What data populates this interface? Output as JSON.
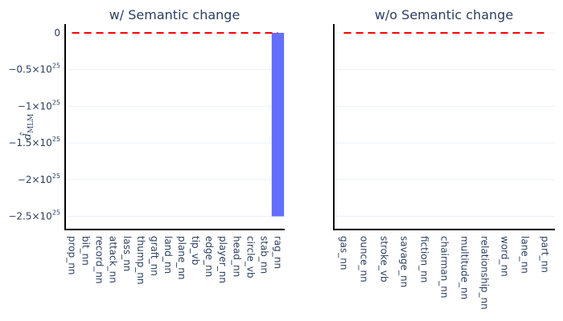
{
  "chart_data": [
    {
      "type": "bar",
      "title": "w/ Semantic change",
      "ylabel": "d̂",
      "ylabel_sub": "MLM",
      "categories": [
        "prop_nn",
        "bit_nn",
        "record_nn",
        "attack_nn",
        "lass_nn",
        "thump_nn",
        "graft_nn",
        "land_nn",
        "plane_nn",
        "tip_vb",
        "edge_nn",
        "player_nn",
        "head_nn",
        "circle_vb",
        "stab_nn",
        "rag_nn"
      ],
      "values": [
        0,
        0,
        0,
        0,
        0,
        0,
        0,
        0,
        0,
        0,
        0,
        0,
        0,
        0,
        0,
        -2.5e+25
      ],
      "ylim": [
        -2.68e+25,
        1.2e+24
      ],
      "yticks": [
        0,
        -5e+24,
        -1e+25,
        -1.5e+25,
        -2e+25,
        -2.5e+25
      ],
      "ytick_labels": [
        {
          "base": "0",
          "exp": ""
        },
        {
          "base": "−0.5×10",
          "exp": "25"
        },
        {
          "base": "−1×10",
          "exp": "25"
        },
        {
          "base": "−1.5×10",
          "exp": "25"
        },
        {
          "base": "−2×10",
          "exp": "25"
        },
        {
          "base": "−2.5×10",
          "exp": "25"
        }
      ],
      "reference_line": 0,
      "bar_color": "#636efa",
      "line_color": "#ff0000",
      "grid": true
    },
    {
      "type": "bar",
      "title": "w/o Semantic change",
      "categories": [
        "gas_nn",
        "ounce_nn",
        "stroke_vb",
        "savage_nn",
        "fiction_nn",
        "chairman_nn",
        "multitude_nn",
        "relationship_nn",
        "word_nn",
        "lane_nn",
        "part_nn"
      ],
      "values": [
        0,
        0,
        0,
        0,
        0,
        0,
        0,
        0,
        0,
        0,
        0
      ],
      "ylim": [
        -2.68e+25,
        1.2e+24
      ],
      "yticks": [
        0,
        -5e+24,
        -1e+25,
        -1.5e+25,
        -2e+25,
        -2.5e+25
      ],
      "reference_line": 0,
      "bar_color": "#636efa",
      "line_color": "#ff0000",
      "grid": true
    }
  ]
}
